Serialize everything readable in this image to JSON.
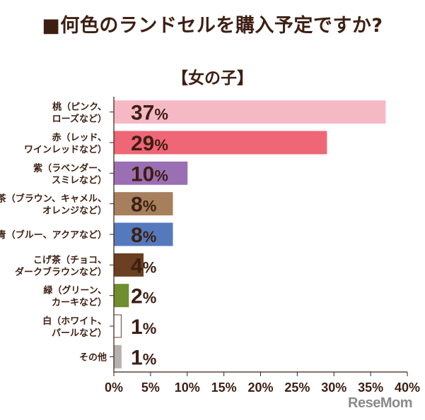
{
  "title": "■何色のランドセルを購入予定ですか?",
  "subtitle": "【女の子】",
  "watermark": "ReseMom",
  "chart_data": {
    "type": "bar",
    "orientation": "horizontal",
    "categories": [
      [
        "桃（ピンク、",
        "ローズなど）"
      ],
      [
        "赤（レッド、",
        "ワインレッドなど）"
      ],
      [
        "紫（ラベンダー、",
        "スミレなど）"
      ],
      [
        "茶（ブラウン、キャメル、",
        "オレンジなど）"
      ],
      [
        "青（ブルー、アクアなど）"
      ],
      [
        "こげ茶（チョコ、",
        "ダークブラウンなど）"
      ],
      [
        "緑（グリーン、",
        "カーキなど）"
      ],
      [
        "白（ホワイト、",
        "パールなど）"
      ],
      [
        "その他"
      ]
    ],
    "values": [
      37,
      29,
      10,
      8,
      8,
      4,
      2,
      1,
      1
    ],
    "value_labels": [
      "37%",
      "29%",
      "10%",
      "8%",
      "8%",
      "4%",
      "2%",
      "1%",
      "1%"
    ],
    "bar_colors": [
      "#f5b9c6",
      "#ef6677",
      "#9b6fb4",
      "#a67f5d",
      "#5579bd",
      "#6b3f22",
      "#6f8e2e",
      "#ffffff",
      "#b6b0b0"
    ],
    "bar_stroke_colors": [
      "#f5b9c6",
      "#ef6677",
      "#9b6fb4",
      "#a67f5d",
      "#5579bd",
      "#6b3f22",
      "#6f8e2e",
      "#6b3f22",
      "#b6b0b0"
    ],
    "xlim": [
      0,
      40
    ],
    "x_ticks": [
      0,
      5,
      10,
      15,
      20,
      25,
      30,
      35,
      40
    ],
    "x_tick_labels": [
      "0%",
      "5%",
      "10%",
      "15%",
      "20%",
      "25%",
      "30%",
      "35%",
      "40%"
    ],
    "grid": false,
    "text_color": "#3d1f12"
  }
}
